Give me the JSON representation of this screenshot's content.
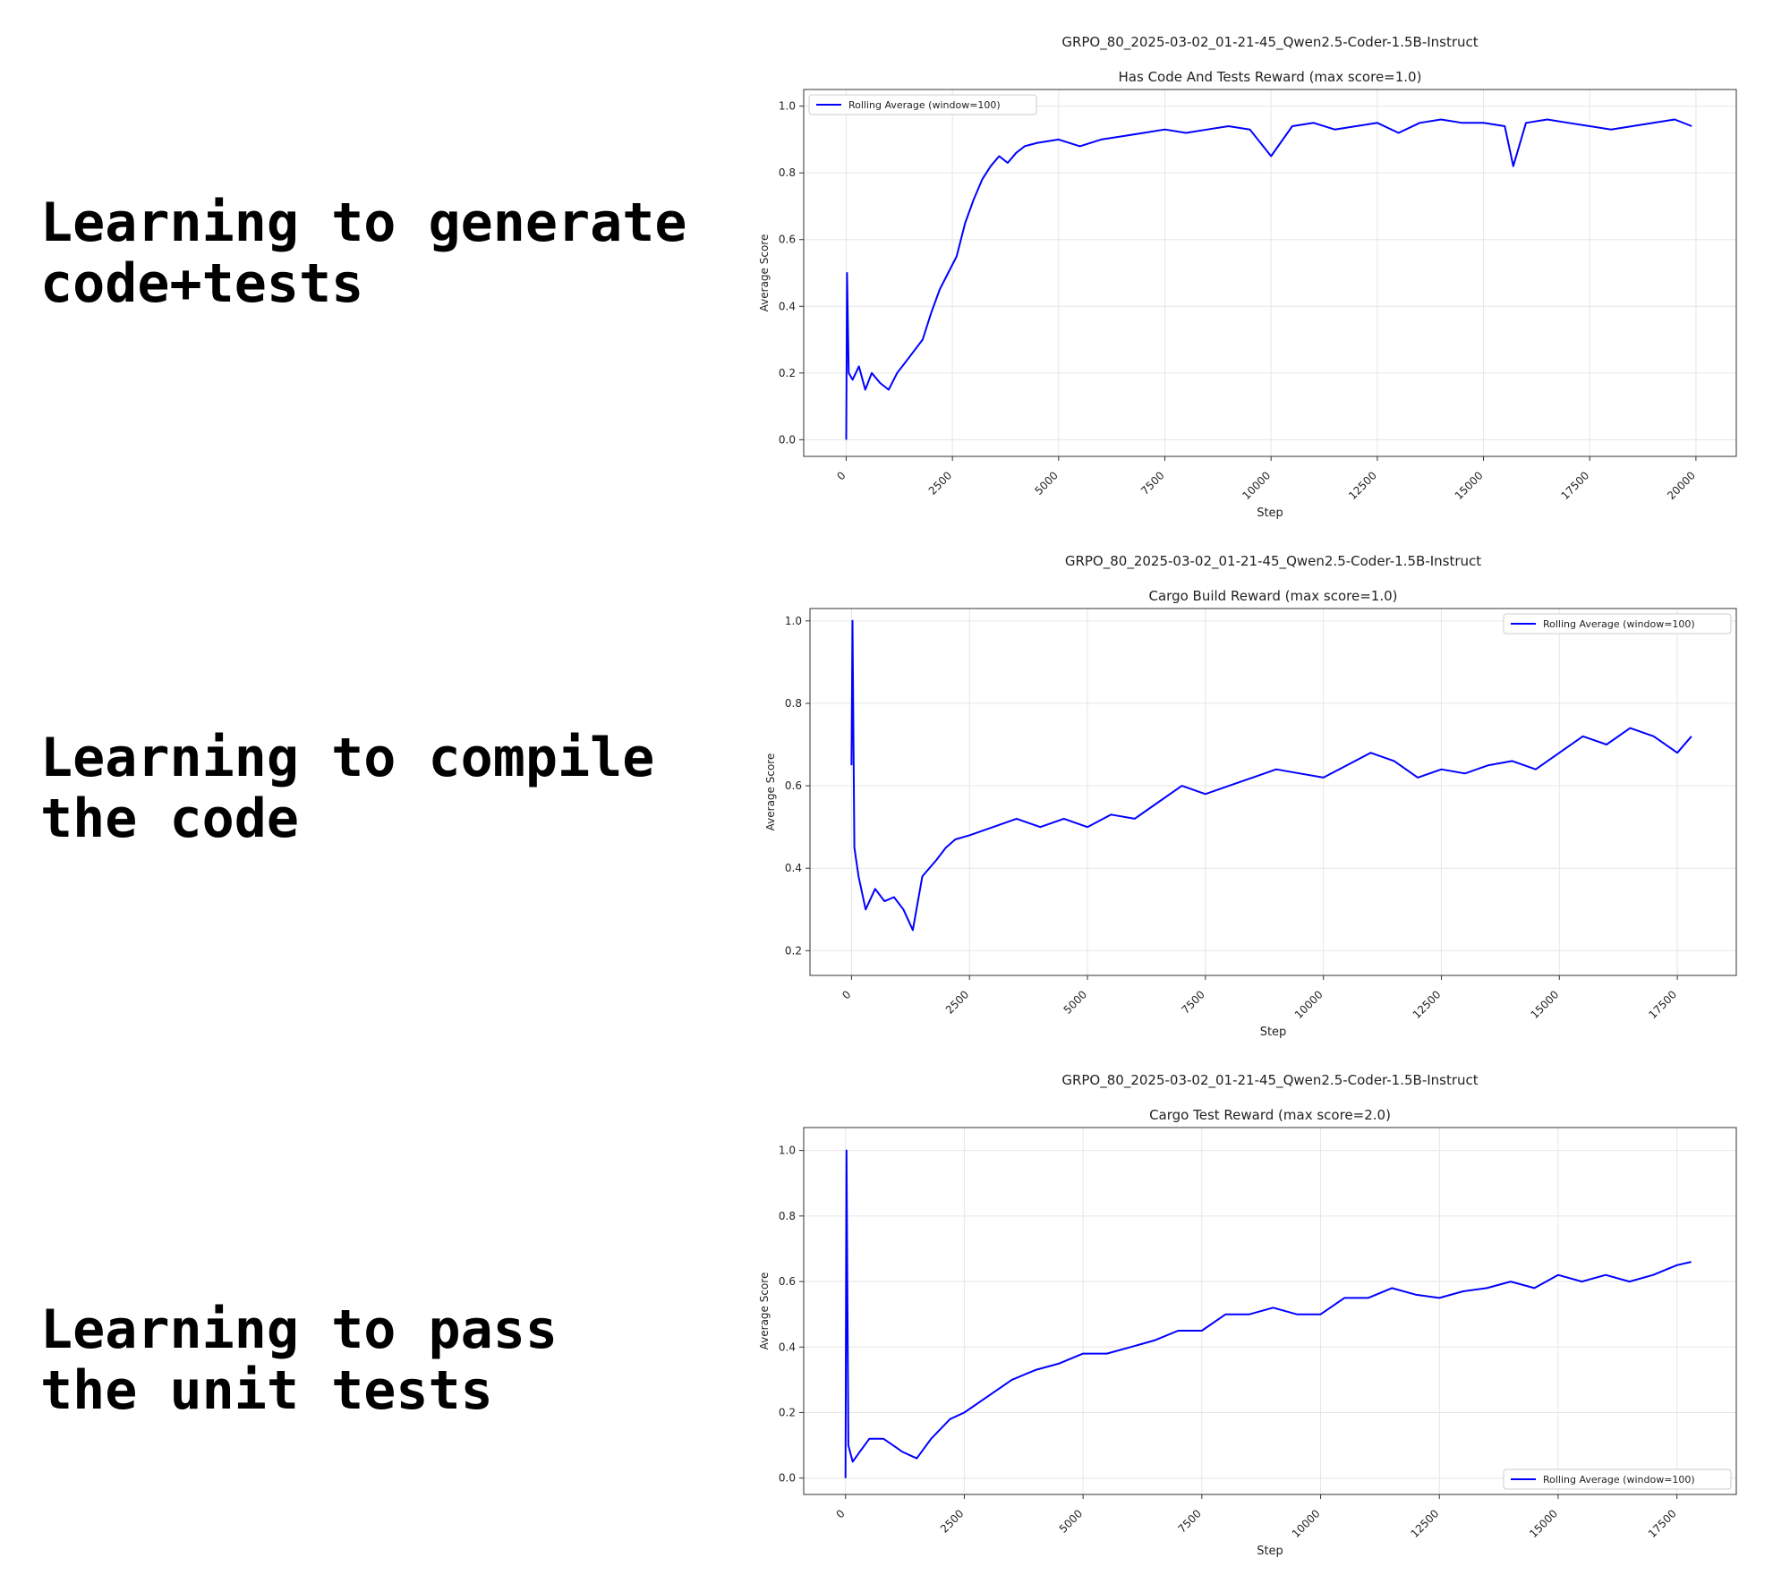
{
  "captions": [
    "Learning to generate\ncode+tests",
    "Learning to compile\nthe code",
    "Learning to pass\nthe unit tests"
  ],
  "chart_data": [
    {
      "type": "line",
      "suptitle": "GRPO_80_2025-03-02_01-21-45_Qwen2.5-Coder-1.5B-Instruct",
      "title": "Has Code And Tests Reward (max score=1.0)",
      "xlabel": "Step",
      "ylabel": "Average Score",
      "xlim": [
        -1000,
        20950
      ],
      "ylim": [
        -0.05,
        1.05
      ],
      "xticks": [
        0,
        2500,
        5000,
        7500,
        10000,
        12500,
        15000,
        17500,
        20000
      ],
      "yticks": [
        "0.0",
        "0.2",
        "0.4",
        "0.6",
        "0.8",
        "1.0"
      ],
      "grid": true,
      "legend_position": "upper-left",
      "series": [
        {
          "name": "Rolling Average (window=100)",
          "color": "#0000ff",
          "x": [
            0,
            20,
            60,
            150,
            300,
            450,
            600,
            800,
            1000,
            1200,
            1500,
            1800,
            2000,
            2200,
            2400,
            2600,
            2800,
            3000,
            3200,
            3400,
            3600,
            3800,
            4000,
            4200,
            4500,
            5000,
            5500,
            6000,
            6500,
            7000,
            7500,
            8000,
            8500,
            9000,
            9500,
            10000,
            10500,
            11000,
            11500,
            12000,
            12500,
            13000,
            13500,
            14000,
            14500,
            15000,
            15500,
            15700,
            16000,
            16500,
            17000,
            17500,
            18000,
            18500,
            19000,
            19500,
            19900
          ],
          "y": [
            0.0,
            0.5,
            0.2,
            0.18,
            0.22,
            0.15,
            0.2,
            0.17,
            0.15,
            0.2,
            0.25,
            0.3,
            0.38,
            0.45,
            0.5,
            0.55,
            0.65,
            0.72,
            0.78,
            0.82,
            0.85,
            0.83,
            0.86,
            0.88,
            0.89,
            0.9,
            0.88,
            0.9,
            0.91,
            0.92,
            0.93,
            0.92,
            0.93,
            0.94,
            0.93,
            0.85,
            0.94,
            0.95,
            0.93,
            0.94,
            0.95,
            0.92,
            0.95,
            0.96,
            0.95,
            0.95,
            0.94,
            0.82,
            0.95,
            0.96,
            0.95,
            0.94,
            0.93,
            0.94,
            0.95,
            0.96,
            0.94
          ]
        }
      ]
    },
    {
      "type": "line",
      "suptitle": "GRPO_80_2025-03-02_01-21-45_Qwen2.5-Coder-1.5B-Instruct",
      "title": "Cargo Build Reward (max score=1.0)",
      "xlabel": "Step",
      "ylabel": "Average Score",
      "xlim": [
        -880,
        18750
      ],
      "ylim": [
        0.14,
        1.03
      ],
      "xticks": [
        0,
        2500,
        5000,
        7500,
        10000,
        12500,
        15000,
        17500
      ],
      "yticks": [
        "0.2",
        "0.4",
        "0.6",
        "0.8",
        "1.0"
      ],
      "grid": true,
      "legend_position": "upper-right",
      "series": [
        {
          "name": "Rolling Average (window=100)",
          "color": "#0000ff",
          "x": [
            0,
            20,
            60,
            150,
            300,
            500,
            700,
            900,
            1100,
            1300,
            1500,
            1800,
            2000,
            2200,
            2500,
            3000,
            3500,
            4000,
            4500,
            5000,
            5500,
            6000,
            6500,
            7000,
            7500,
            8000,
            8500,
            9000,
            9500,
            10000,
            10500,
            11000,
            11500,
            12000,
            12500,
            13000,
            13500,
            14000,
            14500,
            15000,
            15500,
            16000,
            16500,
            17000,
            17500,
            17800
          ],
          "y": [
            0.65,
            1.0,
            0.45,
            0.38,
            0.3,
            0.35,
            0.32,
            0.33,
            0.3,
            0.25,
            0.38,
            0.42,
            0.45,
            0.47,
            0.48,
            0.5,
            0.52,
            0.5,
            0.52,
            0.5,
            0.53,
            0.52,
            0.56,
            0.6,
            0.58,
            0.6,
            0.62,
            0.64,
            0.63,
            0.62,
            0.65,
            0.68,
            0.66,
            0.62,
            0.64,
            0.63,
            0.65,
            0.66,
            0.64,
            0.68,
            0.72,
            0.7,
            0.74,
            0.72,
            0.68,
            0.72
          ]
        }
      ]
    },
    {
      "type": "line",
      "suptitle": "GRPO_80_2025-03-02_01-21-45_Qwen2.5-Coder-1.5B-Instruct",
      "title": "Cargo Test Reward (max score=2.0)",
      "xlabel": "Step",
      "ylabel": "Average Score",
      "xlim": [
        -880,
        18750
      ],
      "ylim": [
        -0.05,
        1.07
      ],
      "xticks": [
        0,
        2500,
        5000,
        7500,
        10000,
        12500,
        15000,
        17500
      ],
      "yticks": [
        "0.0",
        "0.2",
        "0.4",
        "0.6",
        "0.8",
        "1.0"
      ],
      "grid": true,
      "legend_position": "lower-right",
      "series": [
        {
          "name": "Rolling Average (window=100)",
          "color": "#0000ff",
          "x": [
            0,
            20,
            60,
            150,
            300,
            500,
            800,
            1000,
            1200,
            1500,
            1800,
            2000,
            2200,
            2500,
            3000,
            3500,
            4000,
            4500,
            5000,
            5500,
            6000,
            6500,
            7000,
            7500,
            8000,
            8500,
            9000,
            9500,
            10000,
            10500,
            11000,
            11500,
            12000,
            12500,
            13000,
            13500,
            14000,
            14500,
            15000,
            15500,
            16000,
            16500,
            17000,
            17500,
            17800
          ],
          "y": [
            0.0,
            1.0,
            0.1,
            0.05,
            0.08,
            0.12,
            0.12,
            0.1,
            0.08,
            0.06,
            0.12,
            0.15,
            0.18,
            0.2,
            0.25,
            0.3,
            0.33,
            0.35,
            0.38,
            0.38,
            0.4,
            0.42,
            0.45,
            0.45,
            0.5,
            0.5,
            0.52,
            0.5,
            0.5,
            0.55,
            0.55,
            0.58,
            0.56,
            0.55,
            0.57,
            0.58,
            0.6,
            0.58,
            0.62,
            0.6,
            0.62,
            0.6,
            0.62,
            0.65,
            0.66
          ]
        }
      ]
    }
  ]
}
